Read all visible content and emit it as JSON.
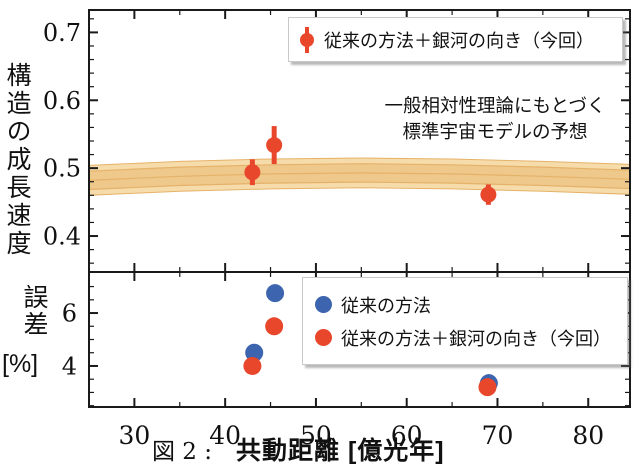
{
  "colors": {
    "red": "#e8472c",
    "blue": "#3d64ae",
    "band_outer": "#f7dcab",
    "band_inner": "#efc88c",
    "band_edge": "#e5b269",
    "axis": "#1a1a1a"
  },
  "figure": {
    "caption_label": "図 2 :",
    "xlabel": "共動距離 [億光年]",
    "top_panel": {
      "ylabel": "構造の成長速度",
      "legend_label": "従来の方法＋銀河の向き（今回）",
      "annotation": [
        "一般相対性理論にもとづく",
        "標準宇宙モデルの予想"
      ]
    },
    "bottom_panel": {
      "ylabel_main": "誤差",
      "ylabel_unit": "[%]",
      "legend": [
        {
          "label": "従来の方法",
          "color": "#3d64ae"
        },
        {
          "label": "従来の方法＋銀河の向き（今回）",
          "color": "#e8472c"
        }
      ]
    }
  },
  "chart_data": [
    {
      "type": "scatter",
      "panel": "top",
      "ylabel": "構造の成長速度",
      "xlabel": "",
      "xlim": [
        25,
        84.6
      ],
      "ylim": [
        0.347,
        0.733
      ],
      "grid": false,
      "xticks": {
        "major": [
          30,
          40,
          50,
          60,
          70,
          80
        ],
        "minor": [
          35,
          45,
          55,
          65,
          75
        ],
        "labels": []
      },
      "yticks": {
        "major": [
          0.4,
          0.5,
          0.6,
          0.7
        ],
        "labels": [
          "0.4",
          "0.5",
          "0.6",
          "0.7"
        ],
        "minor": [
          0.36,
          0.38,
          0.42,
          0.44,
          0.46,
          0.48,
          0.52,
          0.54,
          0.56,
          0.58,
          0.62,
          0.64,
          0.66,
          0.68,
          0.72
        ]
      },
      "band": {
        "label": "一般相対性理論にもとづく標準宇宙モデルの予想",
        "center_points": [
          [
            25,
            0.482
          ],
          [
            35,
            0.488
          ],
          [
            45,
            0.4915
          ],
          [
            55,
            0.493
          ],
          [
            65,
            0.4915
          ],
          [
            75,
            0.488
          ],
          [
            84.6,
            0.4835
          ]
        ],
        "outer_halfwidth": 0.022,
        "inner_halfwidth": 0.0135,
        "outer_color": "#f7dcab",
        "inner_color": "#efc88c",
        "edge_color": "#e5b269"
      },
      "series": [
        {
          "name": "従来の方法＋銀河の向き（今回）",
          "color": "#e8472c",
          "marker": "circle-errorbar",
          "marker_radius": 8,
          "errbar_width": 5,
          "x": [
            43.0,
            45.4,
            69.0
          ],
          "y": [
            0.494,
            0.534,
            0.461
          ],
          "yerr": [
            0.019,
            0.028,
            0.015
          ]
        }
      ],
      "legend_position": "upper right"
    },
    {
      "type": "scatter",
      "panel": "bottom",
      "ylabel": "誤差 [%]",
      "xlabel": "共動距離 [億光年]",
      "xlim": [
        25,
        84.6
      ],
      "ylim": [
        2.45,
        7.55
      ],
      "grid": false,
      "xticks": {
        "major": [
          30,
          40,
          50,
          60,
          70,
          80
        ],
        "minor": [
          35,
          45,
          55,
          65,
          75
        ],
        "labels": [
          "30",
          "40",
          "50",
          "60",
          "70",
          "80"
        ]
      },
      "yticks": {
        "major": [
          4,
          6
        ],
        "labels": [
          "4",
          "6"
        ],
        "minor": [
          2.5,
          3,
          3.5,
          4.5,
          5,
          5.5,
          6.5,
          7
        ]
      },
      "series": [
        {
          "name": "従来の方法",
          "color": "#3d64ae",
          "marker": "circle",
          "marker_radius": 9,
          "x": [
            43.2,
            45.5,
            69.05
          ],
          "y": [
            4.5,
            6.75,
            3.35
          ]
        },
        {
          "name": "従来の方法＋銀河の向き（今回）",
          "color": "#e8472c",
          "marker": "circle",
          "marker_radius": 9,
          "x": [
            43.0,
            45.4,
            68.9
          ],
          "y": [
            4.0,
            5.5,
            3.2
          ]
        }
      ],
      "legend_position": "upper right"
    }
  ]
}
